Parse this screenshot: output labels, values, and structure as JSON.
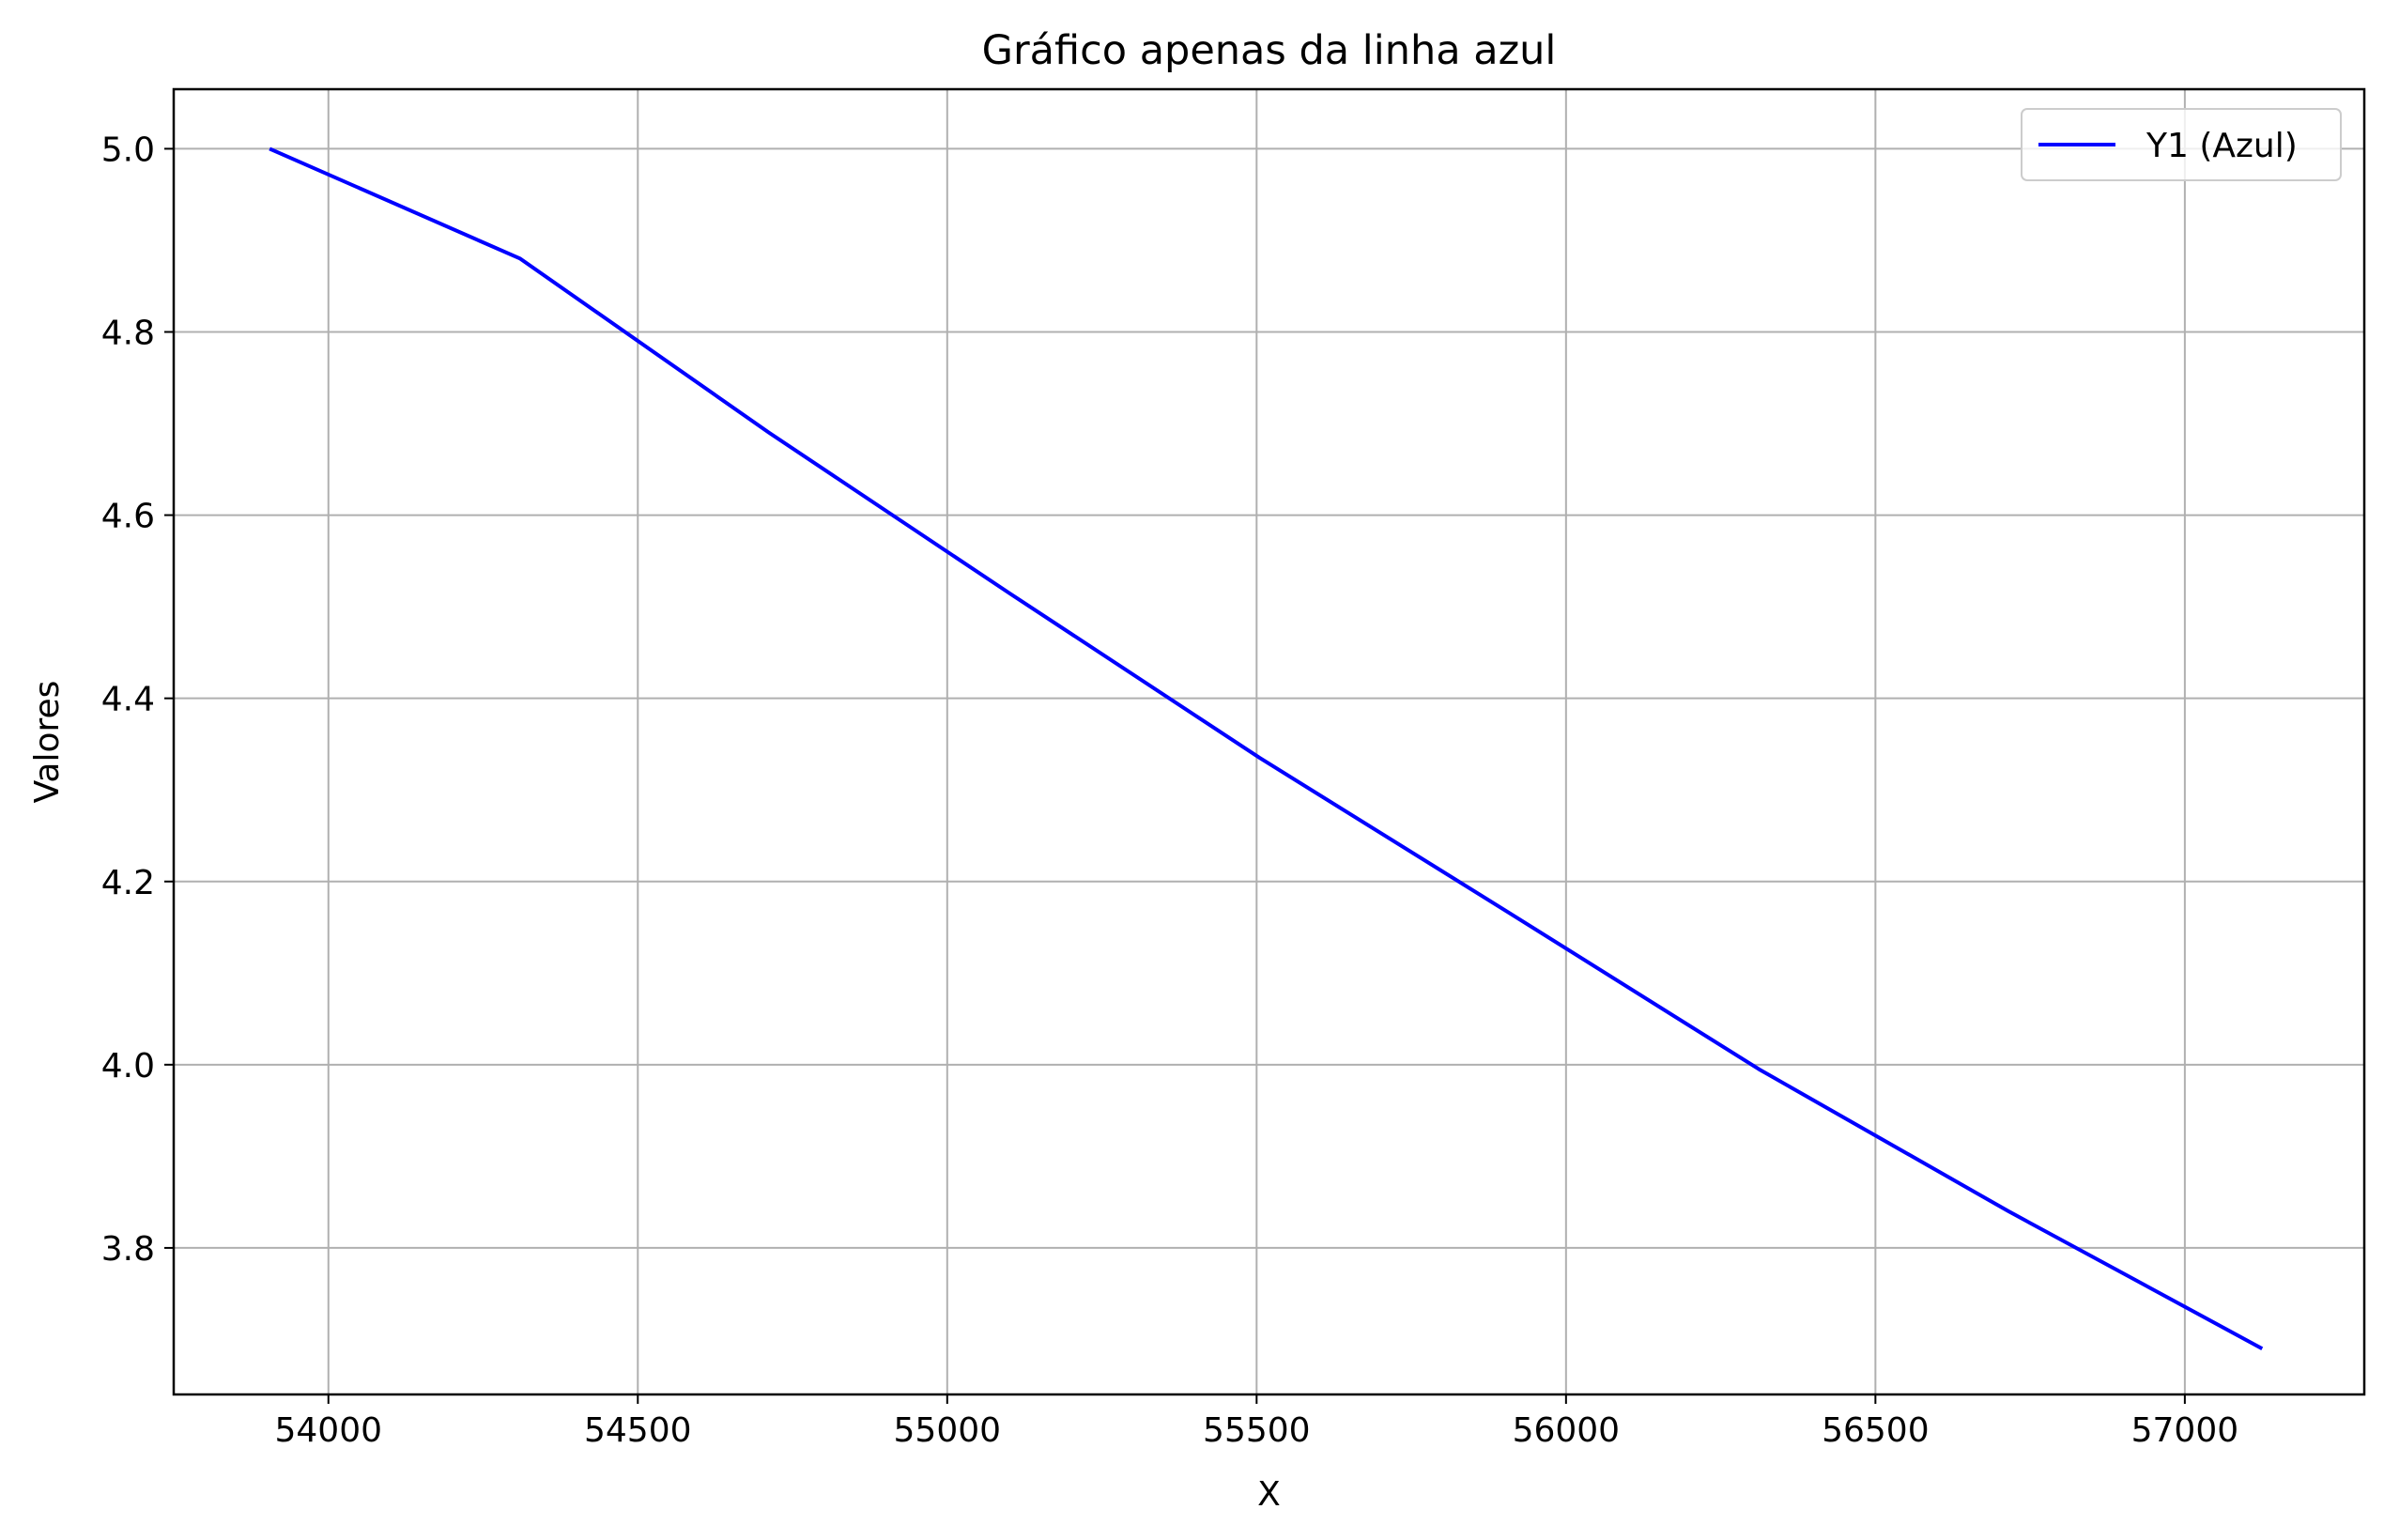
{
  "chart_data": {
    "type": "line",
    "title": "Gráfico apenas da linha azul",
    "xlabel": "X",
    "ylabel": "Valores",
    "xlim": [
      53750,
      57290
    ],
    "ylim": [
      3.64,
      5.065
    ],
    "xticks": [
      54000,
      54500,
      55000,
      55500,
      56000,
      56500,
      57000
    ],
    "xtick_labels": [
      "54000",
      "54500",
      "55000",
      "55500",
      "56000",
      "56500",
      "57000"
    ],
    "yticks": [
      3.8,
      4.0,
      4.2,
      4.4,
      4.6,
      4.8,
      5.0
    ],
    "ytick_labels": [
      "3.8",
      "4.0",
      "4.2",
      "4.4",
      "4.6",
      "4.8",
      "5.0"
    ],
    "grid": true,
    "legend_position": "top-right",
    "series": [
      {
        "name": "Y1 (Azul)",
        "color": "#0000ff",
        "x": [
          53905,
          54310,
          54712,
          55100,
          55505,
          55910,
          56312,
          56715,
          57125
        ],
        "y": [
          5.0,
          4.88,
          4.69,
          4.515,
          4.335,
          4.165,
          3.995,
          3.84,
          3.69
        ]
      }
    ]
  }
}
